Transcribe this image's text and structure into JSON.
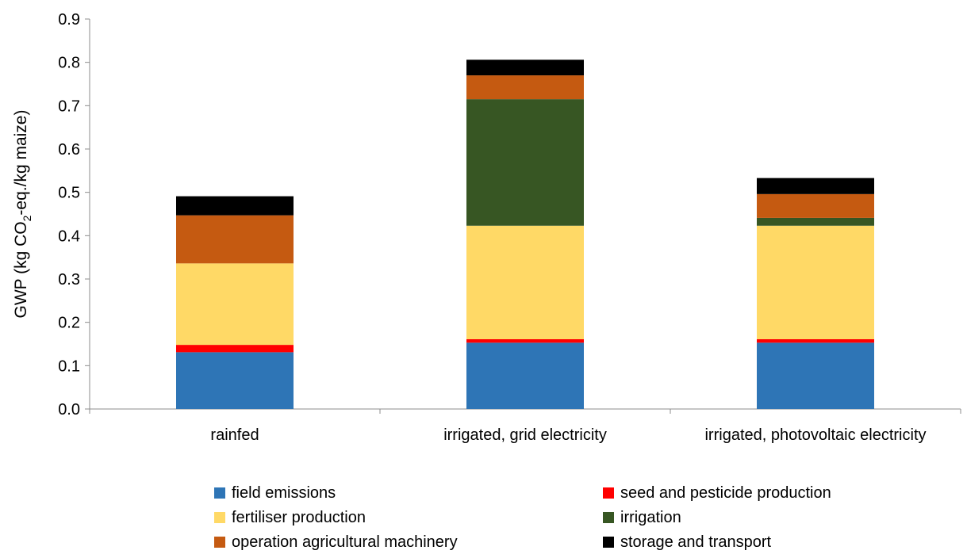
{
  "chart_data": {
    "type": "bar",
    "stacked": true,
    "categories": [
      "rainfed",
      "irrigated, grid electricity",
      "irrigated, photovoltaic electricity"
    ],
    "series": [
      {
        "name": "field emissions",
        "color": "#2E75B6",
        "values": [
          0.131,
          0.153,
          0.153
        ]
      },
      {
        "name": "seed and pesticide production",
        "color": "#FF0000",
        "values": [
          0.017,
          0.008,
          0.008
        ]
      },
      {
        "name": "fertiliser production",
        "color": "#FFD966",
        "values": [
          0.188,
          0.262,
          0.262
        ]
      },
      {
        "name": "irrigation",
        "color": "#375623",
        "values": [
          0.0,
          0.292,
          0.018
        ]
      },
      {
        "name": "operation agricultural machinery",
        "color": "#C55A11",
        "values": [
          0.111,
          0.055,
          0.055
        ]
      },
      {
        "name": "storage and transport",
        "color": "#000000",
        "values": [
          0.044,
          0.036,
          0.037
        ]
      }
    ],
    "ylabel": {
      "prefix": "GWP (kg CO",
      "subscript": "2",
      "suffix": "-eq./kg maize)"
    },
    "ylim": [
      0,
      0.9
    ],
    "yticks": [
      "0.0",
      "0.1",
      "0.2",
      "0.3",
      "0.4",
      "0.5",
      "0.6",
      "0.7",
      "0.8",
      "0.9"
    ],
    "grid": false,
    "legend_position": "bottom"
  }
}
